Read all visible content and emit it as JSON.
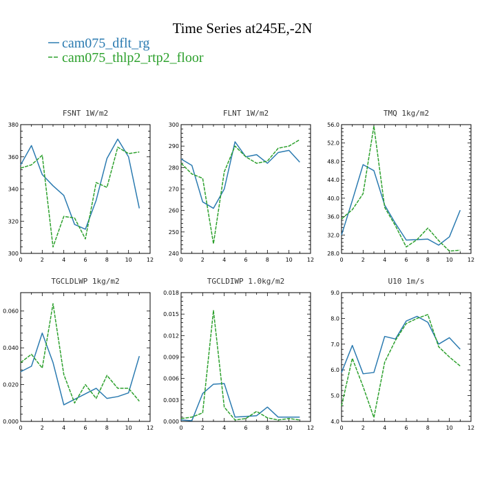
{
  "figure": {
    "title": "Time Series at245E,-2N"
  },
  "legend": [
    {
      "name": "cam075_dflt_rg",
      "color": "#2a7ab0",
      "dash": "solid"
    },
    {
      "name": "cam075_thlp2_rtp2_floor",
      "color": "#2ca02c",
      "dash": "dashed"
    }
  ],
  "chart_data": [
    {
      "type": "line",
      "title": "FSNT  1W/m2",
      "x": [
        0,
        1,
        2,
        3,
        4,
        5,
        6,
        7,
        8,
        9,
        10,
        11
      ],
      "xlim": [
        0,
        12
      ],
      "xticks": [
        "0",
        "2",
        "4",
        "6",
        "8",
        "10",
        "12"
      ],
      "ylim": [
        300,
        380
      ],
      "yticks": [
        "300",
        "320",
        "340",
        "360",
        "380"
      ],
      "series": [
        {
          "name": "cam075_dflt_rg",
          "values": [
            355,
            367,
            349,
            342,
            336,
            318,
            315,
            333,
            359,
            371,
            360,
            328
          ]
        },
        {
          "name": "cam075_thlp2_rtp2_floor",
          "values": [
            353,
            355,
            361,
            304,
            323,
            322,
            309,
            344,
            341,
            366,
            362,
            363
          ]
        }
      ]
    },
    {
      "type": "line",
      "title": "FLNT  1W/m2",
      "x": [
        0,
        1,
        2,
        3,
        4,
        5,
        6,
        7,
        8,
        9,
        10,
        11
      ],
      "xlim": [
        0,
        12
      ],
      "xticks": [
        "0",
        "2",
        "4",
        "6",
        "8",
        "10",
        "12"
      ],
      "ylim": [
        240,
        300
      ],
      "yticks": [
        "240",
        "250",
        "260",
        "270",
        "280",
        "290",
        "300"
      ],
      "series": [
        {
          "name": "cam075_dflt_rg",
          "values": [
            284,
            281,
            264,
            261,
            270,
            292,
            285,
            286,
            282,
            287,
            288,
            282.5
          ]
        },
        {
          "name": "cam075_thlp2_rtp2_floor",
          "values": [
            282,
            277,
            275,
            244.5,
            278,
            290,
            285,
            282,
            283,
            289,
            290,
            293
          ]
        }
      ]
    },
    {
      "type": "line",
      "title": "TMQ  1kg/m2",
      "x": [
        0,
        1,
        2,
        3,
        4,
        5,
        6,
        7,
        8,
        9,
        10,
        11
      ],
      "xlim": [
        0,
        12
      ],
      "xticks": [
        "0",
        "2",
        "4",
        "6",
        "8",
        "10",
        "12"
      ],
      "ylim": [
        28,
        56
      ],
      "yticks": [
        "28.0",
        "32.0",
        "36.0",
        "40.0",
        "44.0",
        "48.0",
        "52.0",
        "56.0"
      ],
      "series": [
        {
          "name": "cam075_dflt_rg",
          "values": [
            32,
            39.5,
            47.3,
            46,
            38.5,
            34.5,
            30.9,
            31,
            31.1,
            29.8,
            31.6,
            37.4
          ]
        },
        {
          "name": "cam075_thlp2_rtp2_floor",
          "values": [
            35.5,
            37.5,
            41,
            55.7,
            38,
            34,
            29.4,
            31,
            33.5,
            30.8,
            28.5,
            28.7
          ]
        }
      ]
    },
    {
      "type": "line",
      "title": "TGCLDLWP  1kg/m2",
      "x": [
        0,
        1,
        2,
        3,
        4,
        5,
        6,
        7,
        8,
        9,
        10,
        11
      ],
      "xlim": [
        0,
        12
      ],
      "xticks": [
        "0",
        "2",
        "4",
        "6",
        "8",
        "10",
        "12"
      ],
      "ylim": [
        0,
        0.07
      ],
      "yticks": [
        "0.000",
        "0.020",
        "0.040",
        "0.060"
      ],
      "ytickvalues": [
        0,
        0.02,
        0.04,
        0.06
      ],
      "series": [
        {
          "name": "cam075_dflt_rg",
          "values": [
            0.027,
            0.03,
            0.048,
            0.032,
            0.009,
            0.012,
            0.015,
            0.018,
            0.0125,
            0.0135,
            0.0155,
            0.0355
          ]
        },
        {
          "name": "cam075_thlp2_rtp2_floor",
          "values": [
            0.032,
            0.0365,
            0.029,
            0.064,
            0.0255,
            0.01,
            0.02,
            0.0125,
            0.025,
            0.018,
            0.018,
            0.011
          ]
        }
      ]
    },
    {
      "type": "line",
      "title": "TGCLDIWP  1.0kg/m2",
      "x": [
        0,
        1,
        2,
        3,
        4,
        5,
        6,
        7,
        8,
        9,
        10,
        11
      ],
      "xlim": [
        0,
        12
      ],
      "xticks": [
        "0",
        "2",
        "4",
        "6",
        "8",
        "10",
        "12"
      ],
      "ylim": [
        0,
        0.018
      ],
      "yticks": [
        "0.000",
        "0.003",
        "0.006",
        "0.009",
        "0.012",
        "0.015",
        "0.018"
      ],
      "ytickvalues": [
        0,
        0.003,
        0.006,
        0.009,
        0.012,
        0.015,
        0.018
      ],
      "series": [
        {
          "name": "cam075_dflt_rg",
          "values": [
            0.0002,
            0.0001,
            0.0039,
            0.0052,
            0.0053,
            0.0006,
            0.0007,
            0.0008,
            0.002,
            0.0006,
            0.0006,
            0.0006
          ]
        },
        {
          "name": "cam075_thlp2_rtp2_floor",
          "values": [
            0.0004,
            0.0006,
            0.0012,
            0.0155,
            0.002,
            0.0002,
            0.0004,
            0.0014,
            0.0005,
            0.0002,
            0.0004,
            0.0002
          ]
        }
      ]
    },
    {
      "type": "line",
      "title": "U10  1m/s",
      "x": [
        0,
        1,
        2,
        3,
        4,
        5,
        6,
        7,
        8,
        9,
        10,
        11
      ],
      "xlim": [
        0,
        12
      ],
      "xticks": [
        "0",
        "2",
        "4",
        "6",
        "8",
        "10",
        "12"
      ],
      "ylim": [
        4,
        9
      ],
      "yticks": [
        "4.0",
        "5.0",
        "6.0",
        "7.0",
        "8.0",
        "9.0"
      ],
      "series": [
        {
          "name": "cam075_dflt_rg",
          "values": [
            5.9,
            6.95,
            5.85,
            5.9,
            7.3,
            7.2,
            7.9,
            8.08,
            7.85,
            7.0,
            7.25,
            6.8
          ]
        },
        {
          "name": "cam075_thlp2_rtp2_floor",
          "values": [
            4.6,
            6.45,
            5.35,
            4.15,
            6.3,
            7.15,
            7.8,
            8.0,
            8.15,
            6.9,
            6.5,
            6.15
          ]
        }
      ]
    }
  ]
}
